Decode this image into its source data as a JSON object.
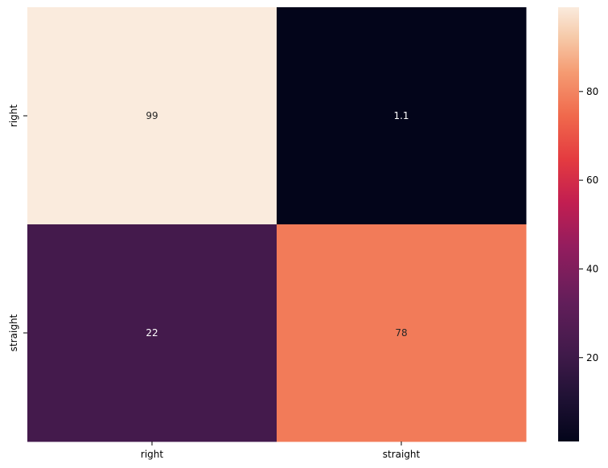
{
  "chart_data": {
    "type": "heatmap",
    "x_categories": [
      "right",
      "straight"
    ],
    "y_categories": [
      "right",
      "straight"
    ],
    "values": [
      [
        99,
        1.1
      ],
      [
        22,
        78
      ]
    ],
    "cell_labels": [
      [
        "99",
        "1.1"
      ],
      [
        "22",
        "78"
      ]
    ],
    "colormap": "rocket",
    "vmin": 1.1,
    "vmax": 99,
    "colorbar": {
      "ticks": [
        20,
        40,
        60,
        80
      ],
      "tick_labels": [
        "20",
        "40",
        "60",
        "80"
      ]
    },
    "title": "",
    "xlabel": "",
    "ylabel": ""
  }
}
